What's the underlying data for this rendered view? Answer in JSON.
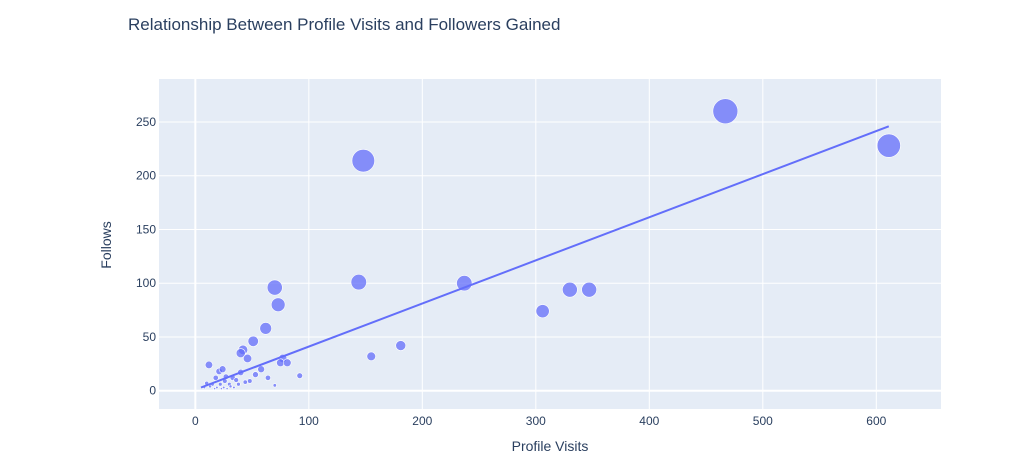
{
  "chart_data": {
    "type": "scatter",
    "title": "Relationship Between Profile Visits and Followers Gained",
    "xlabel": "Profile Visits",
    "ylabel": "Follows",
    "xlim": [
      -32,
      657
    ],
    "ylim": [
      -17,
      290
    ],
    "xticks": [
      0,
      100,
      200,
      300,
      400,
      500,
      600
    ],
    "yticks": [
      0,
      50,
      100,
      150,
      200,
      250
    ],
    "grid": true,
    "plot_bg": "#e5ecf6",
    "marker_color": "#636efa",
    "trendline_color": "#636efa",
    "size_encodes": "Follows",
    "trendline": {
      "x": [
        5,
        611
      ],
      "y": [
        3,
        246
      ]
    },
    "points": [
      {
        "x": 467,
        "y": 260
      },
      {
        "x": 611,
        "y": 228
      },
      {
        "x": 148,
        "y": 214
      },
      {
        "x": 237,
        "y": 100
      },
      {
        "x": 144,
        "y": 101
      },
      {
        "x": 70,
        "y": 96
      },
      {
        "x": 73,
        "y": 80
      },
      {
        "x": 330,
        "y": 94
      },
      {
        "x": 347,
        "y": 94
      },
      {
        "x": 306,
        "y": 74
      },
      {
        "x": 62,
        "y": 58
      },
      {
        "x": 51,
        "y": 46
      },
      {
        "x": 181,
        "y": 42
      },
      {
        "x": 42,
        "y": 38
      },
      {
        "x": 40,
        "y": 35
      },
      {
        "x": 46,
        "y": 30
      },
      {
        "x": 155,
        "y": 32
      },
      {
        "x": 77,
        "y": 30
      },
      {
        "x": 75,
        "y": 26
      },
      {
        "x": 81,
        "y": 26
      },
      {
        "x": 12,
        "y": 24
      },
      {
        "x": 58,
        "y": 20
      },
      {
        "x": 21,
        "y": 18
      },
      {
        "x": 24,
        "y": 20
      },
      {
        "x": 40,
        "y": 17
      },
      {
        "x": 53,
        "y": 15
      },
      {
        "x": 27,
        "y": 13
      },
      {
        "x": 18,
        "y": 12
      },
      {
        "x": 33,
        "y": 12
      },
      {
        "x": 92,
        "y": 14
      },
      {
        "x": 64,
        "y": 12
      },
      {
        "x": 36,
        "y": 10
      },
      {
        "x": 48,
        "y": 9
      },
      {
        "x": 26,
        "y": 9
      },
      {
        "x": 44,
        "y": 8
      },
      {
        "x": 10,
        "y": 7
      },
      {
        "x": 15,
        "y": 6
      },
      {
        "x": 22,
        "y": 6
      },
      {
        "x": 30,
        "y": 6
      },
      {
        "x": 38,
        "y": 6
      },
      {
        "x": 70,
        "y": 5
      },
      {
        "x": 13,
        "y": 4
      },
      {
        "x": 19,
        "y": 3
      },
      {
        "x": 25,
        "y": 3
      },
      {
        "x": 31,
        "y": 4
      },
      {
        "x": 17,
        "y": 2
      },
      {
        "x": 23,
        "y": 2
      },
      {
        "x": 28,
        "y": 2
      },
      {
        "x": 34,
        "y": 3
      },
      {
        "x": 8,
        "y": 3
      }
    ]
  }
}
